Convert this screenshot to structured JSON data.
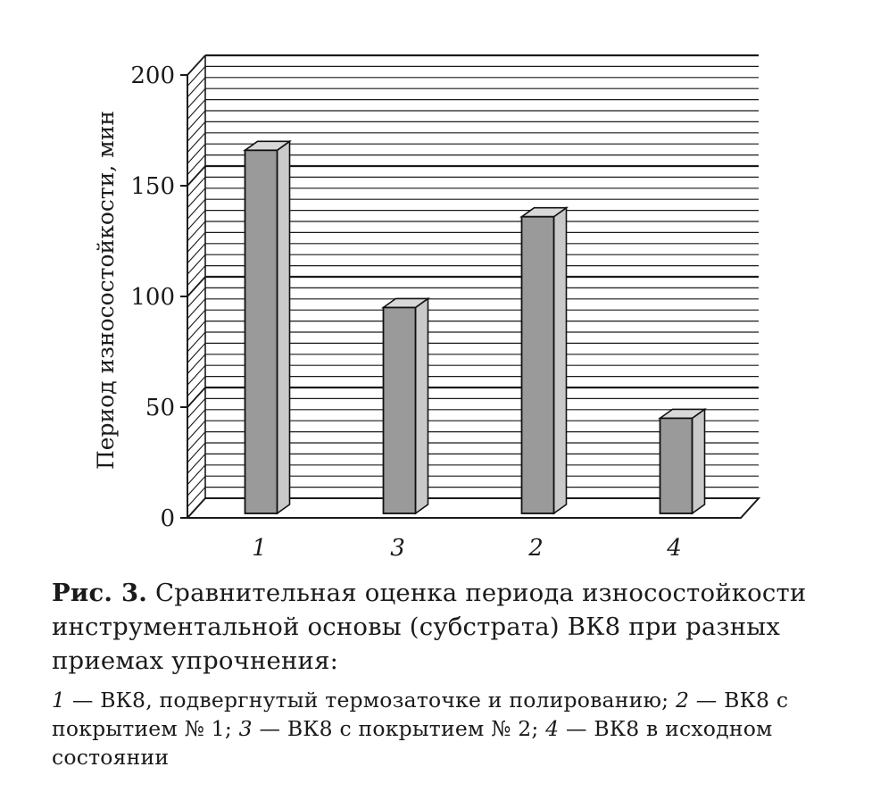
{
  "chart_data": {
    "type": "bar",
    "style": "3d",
    "categories": [
      "1",
      "3",
      "2",
      "4"
    ],
    "values": [
      166,
      95,
      136,
      45
    ],
    "ylabel": "Период износостойкости, мин",
    "xlabel": "",
    "ylim": [
      0,
      200
    ],
    "yticks": [
      0,
      50,
      100,
      150,
      200
    ],
    "grid": true,
    "bar_color": "#9a9a9a"
  },
  "caption": {
    "figure_label": "Рис. 3.",
    "text": "Сравнительная оценка периода износостойкости инструментальной основы (субстрата) ВК8 при разных приемах упрочнения:"
  },
  "legend": {
    "items": [
      {
        "num": "1",
        "text": " — ВК8, подвергнутый термозаточке и полированию; "
      },
      {
        "num": "2",
        "text": " — ВК8 с покрытием № 1; "
      },
      {
        "num": "3",
        "text": " — ВК8 с покрытием № 2; "
      },
      {
        "num": "4",
        "text": " — ВК8 в исходном состоянии"
      }
    ]
  }
}
